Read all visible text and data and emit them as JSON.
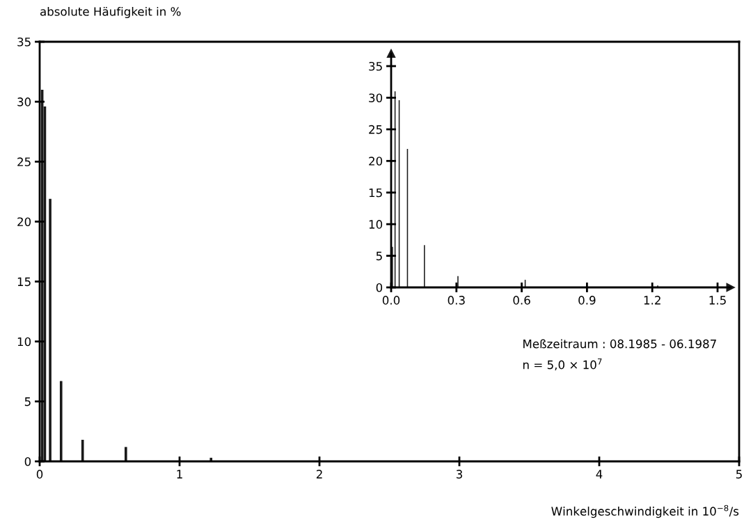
{
  "chart_data": [
    {
      "type": "bar",
      "xlabel": "Winkelgeschwindigkeit in 10$^{−8}$/s",
      "ylabel": "absolute Häufigkeit in %",
      "x": [
        0.018,
        0.037,
        0.075,
        0.153,
        0.307,
        0.616,
        1.225
      ],
      "values": [
        31.0,
        29.6,
        21.9,
        6.7,
        1.8,
        1.2,
        0.3
      ],
      "color": "#1a1a1a",
      "xlim": [
        0,
        5
      ],
      "xticks": [
        0,
        1,
        2,
        3,
        4,
        5
      ],
      "ylim": [
        0,
        35
      ],
      "yticks": [
        0,
        5,
        10,
        15,
        20,
        25,
        30,
        35
      ],
      "grid": false,
      "annotations": [
        "Meßzeitraum : 08.1985 - 06.1987",
        "n = 5,0 × 10$^{7}$"
      ]
    },
    {
      "type": "bar",
      "x": [
        0.006,
        0.018,
        0.037,
        0.075,
        0.153,
        0.307,
        0.616,
        1.225
      ],
      "values": [
        6.4,
        31.0,
        29.6,
        21.9,
        6.7,
        1.8,
        1.2,
        0.3
      ],
      "color": "#1a1a1a",
      "xlim": [
        0,
        1.56
      ],
      "xticks": [
        {
          "value": 0,
          "label": "0.0"
        },
        0.3,
        0.6,
        0.9,
        1.2,
        1.5
      ],
      "ylim": [
        0,
        37
      ],
      "yticks": [
        0,
        5,
        10,
        15,
        20,
        25,
        30,
        35
      ],
      "grid": false
    }
  ]
}
